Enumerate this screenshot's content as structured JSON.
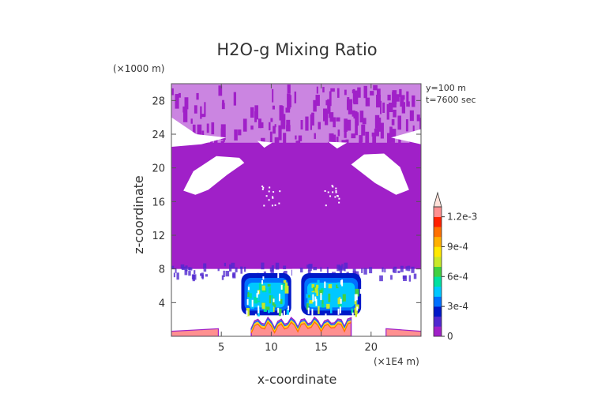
{
  "chart_data": {
    "type": "heatmap",
    "title": "H2O-g Mixing Ratio",
    "xlabel": "x-coordinate",
    "ylabel": "z-coordinate",
    "x_scale_label": "(×1E4 m)",
    "y_scale_label": "(×1000 m)",
    "annotations": [
      "y=100 m",
      "t=7600 sec"
    ],
    "xlim": [
      0,
      25
    ],
    "ylim": [
      0,
      30
    ],
    "x_ticks": [
      5,
      10,
      15,
      20
    ],
    "y_ticks": [
      4,
      8,
      12,
      16,
      20,
      24,
      28
    ],
    "colorbar": {
      "labels": [
        "0",
        "3e-4",
        "6e-4",
        "9e-4",
        "1.2e-3"
      ],
      "label_values": [
        0,
        0.0003,
        0.0006,
        0.0009,
        0.0012
      ],
      "levels": [
        0,
        0.0001,
        0.0002,
        0.0003,
        0.0004,
        0.0005,
        0.0006,
        0.0007,
        0.0008,
        0.0009,
        0.001,
        0.0011,
        0.0012
      ],
      "colors": [
        "#a020c8",
        "#5028d0",
        "#0018c8",
        "#0070ff",
        "#00c8ff",
        "#00e0a0",
        "#40d040",
        "#c8e828",
        "#ffe800",
        "#ffb000",
        "#ff7000",
        "#ff2000",
        "#ff9090"
      ],
      "extend_max_color": "#ffe0d8",
      "extend": "max"
    },
    "colors": {
      "background_band": "#a020c8",
      "moist_core": "#00c8ff"
    },
    "regions": [
      {
        "desc": "upper fragmented band",
        "x": [
          0,
          25
        ],
        "z": [
          23,
          30
        ],
        "value": 2e-05
      },
      {
        "desc": "main layer",
        "x": [
          0,
          25
        ],
        "z": [
          8,
          23
        ],
        "value": 3e-05
      },
      {
        "desc": "left moist core",
        "x": [
          7,
          12
        ],
        "z": [
          2.5,
          7.5
        ],
        "value": 0.0004
      },
      {
        "desc": "right moist core",
        "x": [
          13,
          19
        ],
        "z": [
          2.5,
          7.5
        ],
        "value": 0.0004
      },
      {
        "desc": "surface layer",
        "x": [
          8,
          18
        ],
        "z": [
          0,
          2.2
        ],
        "value": 0.0012
      }
    ]
  }
}
